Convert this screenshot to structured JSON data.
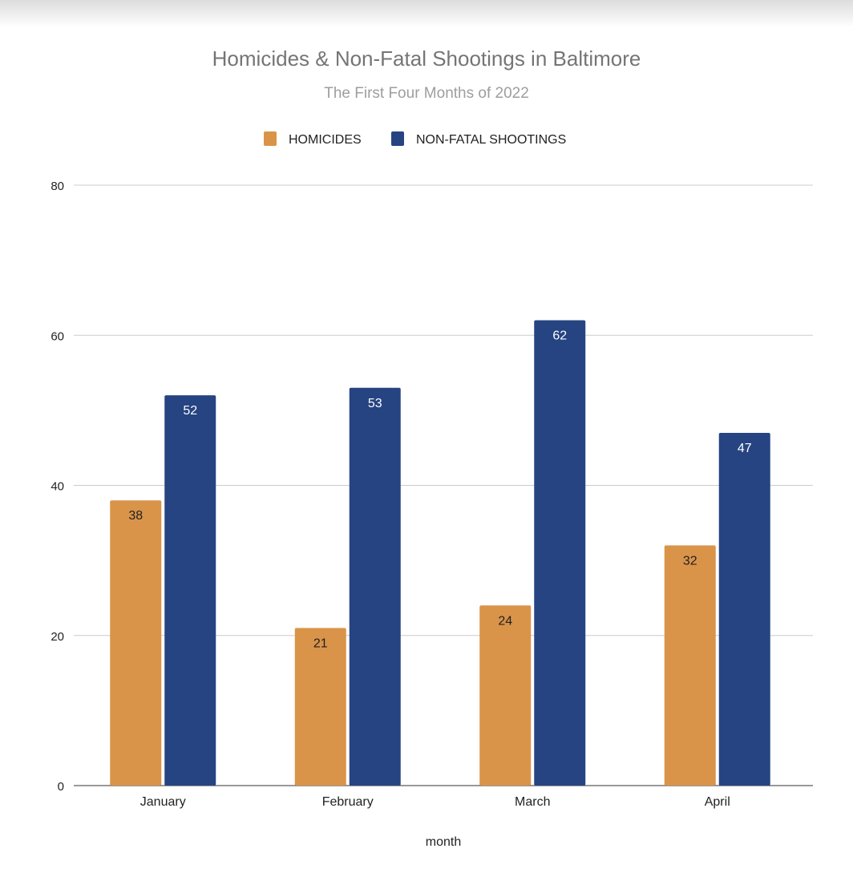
{
  "chart_data": {
    "type": "bar",
    "title": "Homicides & Non-Fatal Shootings in Baltimore",
    "subtitle": "The First Four Months of 2022",
    "xlabel": "month",
    "ylabel": "",
    "categories": [
      "January",
      "February",
      "March",
      "April"
    ],
    "series": [
      {
        "name": "HOMICIDES",
        "color": "#d9944a",
        "label_color": "#212121",
        "values": [
          38,
          21,
          24,
          32
        ]
      },
      {
        "name": "NON-FATAL SHOOTINGS",
        "color": "#264482",
        "label_color": "#ffffff",
        "values": [
          52,
          53,
          62,
          47
        ]
      }
    ],
    "ylim": [
      0,
      80
    ],
    "yticks": [
      0,
      20,
      40,
      60,
      80
    ],
    "grid": true,
    "legend": "top-center"
  }
}
